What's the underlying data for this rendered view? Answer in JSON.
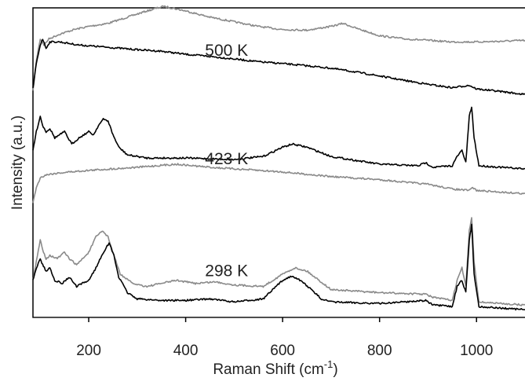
{
  "chart_data": {
    "type": "line",
    "xlabel": "Raman Shift (cm",
    "xlabel_sup": "-1",
    "xlabel_tail": ")",
    "ylabel": "Intensity (a.u.)",
    "xlim": [
      85,
      1100
    ],
    "ylim": [
      0,
      100
    ],
    "xticks": [
      200,
      400,
      600,
      800,
      1000
    ],
    "grid": false,
    "annotations": [
      {
        "text": "500 K",
        "x": 440,
        "y": 84.5
      },
      {
        "text": "423 K",
        "x": 440,
        "y": 49.5
      },
      {
        "text": "298 K",
        "x": 440,
        "y": 13.3
      }
    ],
    "series": [
      {
        "color": "#8a8a8a",
        "x": [
          85,
          92,
          100,
          108,
          118,
          140,
          170,
          200,
          240,
          280,
          320,
          355,
          400,
          450,
          500,
          550,
          600,
          650,
          700,
          725,
          750,
          800,
          850,
          900,
          950,
          1000,
          1050,
          1100
        ],
        "y": [
          73,
          83,
          90,
          88,
          90,
          91.5,
          93,
          94,
          95,
          97,
          99,
          100.5,
          99,
          97,
          95.5,
          94,
          93,
          92.8,
          94,
          95,
          93.5,
          91,
          90,
          89.5,
          89,
          89,
          89.2,
          89.5
        ]
      },
      {
        "color": "#000000",
        "x": [
          85,
          92,
          100,
          105,
          112,
          120,
          140,
          180,
          220,
          260,
          300,
          350,
          400,
          450,
          500,
          550,
          600,
          650,
          700,
          750,
          800,
          850,
          900,
          950,
          985,
          1000,
          1050,
          1100
        ],
        "y": [
          74,
          82,
          88,
          90,
          87,
          89,
          89,
          88,
          87.5,
          87,
          86.5,
          86,
          85,
          84.3,
          83.5,
          82.6,
          82,
          81.3,
          80.5,
          79.3,
          78,
          76.6,
          75.3,
          74.2,
          75,
          73.8,
          73,
          72
        ]
      },
      {
        "color": "#000000",
        "x": [
          85,
          92,
          100,
          105,
          112,
          120,
          130,
          150,
          165,
          180,
          200,
          210,
          220,
          230,
          240,
          250,
          262,
          280,
          320,
          400,
          500,
          560,
          600,
          620,
          650,
          700,
          800,
          880,
          895,
          910,
          950,
          960,
          970,
          978,
          985,
          990,
          995,
          1005,
          1050,
          1100
        ],
        "y": [
          54,
          60,
          65,
          62,
          60,
          61,
          58,
          60,
          56,
          58,
          60,
          59,
          62,
          64,
          63.5,
          59,
          55,
          52.5,
          51.5,
          51.5,
          51,
          52,
          55,
          56,
          55,
          52,
          49.5,
          49,
          50,
          48.5,
          49,
          52,
          54,
          50,
          65,
          68,
          58,
          49,
          48.5,
          48
        ]
      },
      {
        "color": "#8a8a8a",
        "x": [
          85,
          92,
          100,
          110,
          130,
          160,
          200,
          250,
          300,
          380,
          450,
          500,
          600,
          700,
          800,
          900,
          950,
          985,
          992,
          1000,
          1050,
          1100
        ],
        "y": [
          37,
          42,
          45,
          46,
          46.5,
          47,
          47.5,
          48,
          48.5,
          49.5,
          48.5,
          48,
          47,
          45.5,
          44.5,
          43,
          41.5,
          41,
          42,
          41,
          40.5,
          40
        ]
      },
      {
        "color": "#8a8a8a",
        "x": [
          85,
          92,
          100,
          105,
          112,
          120,
          135,
          150,
          160,
          175,
          200,
          215,
          228,
          240,
          250,
          265,
          290,
          320,
          380,
          420,
          460,
          500,
          560,
          600,
          625,
          650,
          700,
          800,
          895,
          910,
          950,
          960,
          970,
          978,
          985,
          990,
          995,
          1005,
          1050,
          1100
        ],
        "y": [
          12,
          18,
          25,
          22,
          19,
          20,
          19,
          21,
          19,
          17,
          21,
          26,
          28,
          26,
          21,
          14,
          11,
          10,
          12,
          11,
          11.5,
          10.5,
          10,
          14,
          16,
          15,
          9,
          8,
          7.5,
          6.5,
          5.5,
          12,
          16,
          10,
          28,
          32,
          18,
          5,
          4.5,
          4
        ]
      },
      {
        "color": "#000000",
        "x": [
          85,
          92,
          100,
          105,
          112,
          120,
          130,
          145,
          160,
          175,
          200,
          215,
          230,
          242,
          252,
          262,
          280,
          300,
          350,
          400,
          450,
          500,
          560,
          600,
          620,
          645,
          680,
          700,
          800,
          895,
          910,
          950,
          960,
          970,
          978,
          985,
          990,
          995,
          1005,
          1050,
          1100
        ],
        "y": [
          12,
          16,
          19,
          17,
          15,
          16,
          12,
          11,
          13,
          10,
          12,
          16,
          21,
          24,
          20,
          13,
          8,
          6,
          5.5,
          5.5,
          6,
          5,
          6,
          12,
          13.5,
          11,
          6,
          5,
          4.5,
          5.5,
          4,
          3.5,
          10,
          12,
          8,
          25,
          30,
          14,
          3.5,
          3,
          2.5
        ]
      }
    ]
  }
}
